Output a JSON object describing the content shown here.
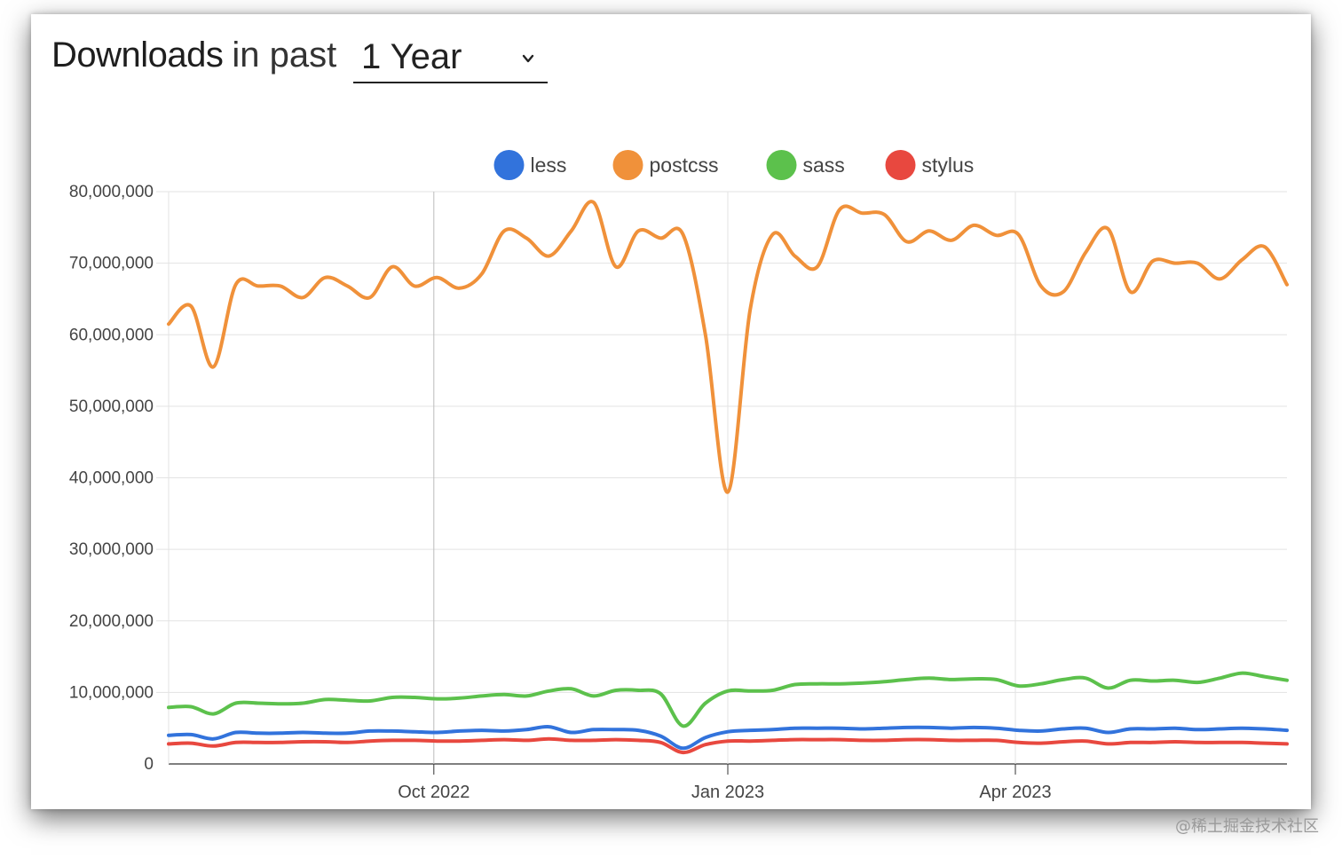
{
  "header": {
    "title_strong": "Downloads",
    "title_light": "in past",
    "period_value": "1 Year"
  },
  "watermark": "@稀土掘金技术社区",
  "chart_data": {
    "type": "line",
    "title": "",
    "xlabel": "",
    "ylabel": "",
    "ylim": [
      0,
      80000000
    ],
    "yticks": [
      0,
      10000000,
      20000000,
      30000000,
      40000000,
      50000000,
      60000000,
      70000000,
      80000000
    ],
    "ytick_labels": [
      "0",
      "10,000,000",
      "20,000,000",
      "30,000,000",
      "40,000,000",
      "50,000,000",
      "60,000,000",
      "70,000,000",
      "80,000,000"
    ],
    "xlim": [
      "2022-07-10",
      "2023-06-25"
    ],
    "xticks": [
      "2022-10-01",
      "2023-01-01",
      "2023-04-01"
    ],
    "xtick_labels": [
      "Oct 2022",
      "Jan 2023",
      "Apr 2023"
    ],
    "grid": true,
    "legend_position": "top-center",
    "x": [
      "2022-07-10",
      "2022-07-17",
      "2022-07-24",
      "2022-07-31",
      "2022-08-07",
      "2022-08-14",
      "2022-08-21",
      "2022-08-28",
      "2022-09-04",
      "2022-09-11",
      "2022-09-18",
      "2022-09-25",
      "2022-10-02",
      "2022-10-09",
      "2022-10-16",
      "2022-10-23",
      "2022-10-30",
      "2022-11-06",
      "2022-11-13",
      "2022-11-20",
      "2022-11-27",
      "2022-12-04",
      "2022-12-11",
      "2022-12-18",
      "2022-12-25",
      "2023-01-01",
      "2023-01-08",
      "2023-01-15",
      "2023-01-22",
      "2023-01-29",
      "2023-02-05",
      "2023-02-12",
      "2023-02-19",
      "2023-02-26",
      "2023-03-05",
      "2023-03-12",
      "2023-03-19",
      "2023-03-26",
      "2023-04-02",
      "2023-04-09",
      "2023-04-16",
      "2023-04-23",
      "2023-04-30",
      "2023-05-07",
      "2023-05-14",
      "2023-05-21",
      "2023-05-28",
      "2023-06-04",
      "2023-06-11",
      "2023-06-18",
      "2023-06-25"
    ],
    "series": [
      {
        "name": "less",
        "color": "#3273dc",
        "values": [
          4000000,
          4100000,
          3500000,
          4400000,
          4300000,
          4300000,
          4400000,
          4300000,
          4300000,
          4600000,
          4600000,
          4500000,
          4400000,
          4600000,
          4700000,
          4600000,
          4800000,
          5200000,
          4400000,
          4800000,
          4800000,
          4700000,
          3900000,
          2200000,
          3700000,
          4500000,
          4700000,
          4800000,
          5000000,
          5000000,
          5000000,
          4900000,
          5000000,
          5100000,
          5100000,
          5000000,
          5100000,
          5000000,
          4700000,
          4600000,
          4900000,
          5000000,
          4400000,
          4900000,
          4900000,
          5000000,
          4800000,
          4900000,
          5000000,
          4900000,
          4700000
        ]
      },
      {
        "name": "postcss",
        "color": "#f0913a",
        "values": [
          61500000,
          64000000,
          55500000,
          67000000,
          66800000,
          66800000,
          65200000,
          68000000,
          66800000,
          65200000,
          69500000,
          66800000,
          68000000,
          66500000,
          68500000,
          74500000,
          73500000,
          71000000,
          74500000,
          78500000,
          69500000,
          74500000,
          73500000,
          74000000,
          60000000,
          38000000,
          63500000,
          74000000,
          71000000,
          69500000,
          77500000,
          77000000,
          76800000,
          73000000,
          74500000,
          73200000,
          75300000,
          73900000,
          74000000,
          66800000,
          66000000,
          71500000,
          74800000,
          66000000,
          70300000,
          70000000,
          70000000,
          67800000,
          70500000,
          72300000,
          67000000
        ]
      },
      {
        "name": "sass",
        "color": "#5cc14c",
        "values": [
          7900000,
          8000000,
          7000000,
          8500000,
          8500000,
          8400000,
          8500000,
          9000000,
          8900000,
          8800000,
          9300000,
          9300000,
          9100000,
          9200000,
          9500000,
          9700000,
          9500000,
          10200000,
          10500000,
          9500000,
          10300000,
          10300000,
          9800000,
          5300000,
          8500000,
          10200000,
          10200000,
          10300000,
          11100000,
          11200000,
          11200000,
          11300000,
          11500000,
          11800000,
          12000000,
          11800000,
          11900000,
          11800000,
          10900000,
          11200000,
          11800000,
          12000000,
          10600000,
          11700000,
          11600000,
          11700000,
          11400000,
          12000000,
          12700000,
          12200000,
          11700000
        ]
      },
      {
        "name": "stylus",
        "color": "#e8483f",
        "values": [
          2800000,
          2900000,
          2500000,
          3000000,
          3000000,
          3000000,
          3100000,
          3100000,
          3000000,
          3200000,
          3300000,
          3300000,
          3200000,
          3200000,
          3300000,
          3400000,
          3300000,
          3500000,
          3300000,
          3300000,
          3400000,
          3300000,
          3000000,
          1600000,
          2700000,
          3200000,
          3200000,
          3300000,
          3400000,
          3400000,
          3400000,
          3300000,
          3300000,
          3400000,
          3400000,
          3300000,
          3300000,
          3300000,
          3000000,
          2900000,
          3100000,
          3200000,
          2800000,
          3000000,
          3000000,
          3100000,
          3000000,
          3000000,
          3000000,
          2900000,
          2800000
        ]
      }
    ]
  }
}
